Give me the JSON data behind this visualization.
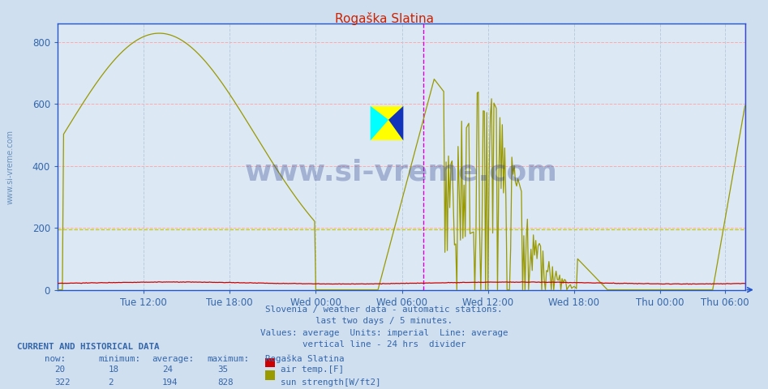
{
  "title": "Rogaška Slatina",
  "bg_color": "#d0dff0",
  "plot_bg_color": "#dce8f4",
  "grid_color_h": "#ffaaaa",
  "grid_color_v": "#bbccdd",
  "ylim": [
    0,
    860
  ],
  "yticks": [
    0,
    200,
    400,
    600,
    800
  ],
  "xlabel_color": "#3366aa",
  "title_color": "#cc2200",
  "axis_color": "#2255cc",
  "vline_color": "#dd00dd",
  "avg_line_color": "#cccc00",
  "avg_value_sun": 194,
  "footnote_lines": [
    "Slovenia / weather data - automatic stations.",
    "last two days / 5 minutes.",
    "Values: average  Units: imperial  Line: average",
    "vertical line - 24 hrs  divider"
  ],
  "footnote_color": "#3366aa",
  "legend_items": [
    {
      "label": "air temp.[F]",
      "color": "#cc0000",
      "now": 20,
      "min": 18,
      "avg": 24,
      "max": 35
    },
    {
      "label": "sun strength[W/ft2]",
      "color": "#999900",
      "now": 322,
      "min": 2,
      "avg": 194,
      "max": 828
    }
  ],
  "watermark_text": "www.si-vreme.com",
  "watermark_color": "#223388",
  "watermark_alpha": 0.3,
  "sidebar_text": "www.si-vreme.com",
  "sidebar_color": "#4477aa",
  "n_points": 576,
  "xtick_labels": [
    "Tue 12:00",
    "Tue 18:00",
    "Wed 00:00",
    "Wed 06:00",
    "Wed 12:00",
    "Wed 18:00",
    "Thu 00:00",
    "Thu 06:00"
  ],
  "xtick_positions": [
    72,
    144,
    216,
    288,
    360,
    432,
    504,
    558
  ],
  "vline_pos": 306,
  "air_temp_color": "#cc0000",
  "sun_color": "#999900"
}
